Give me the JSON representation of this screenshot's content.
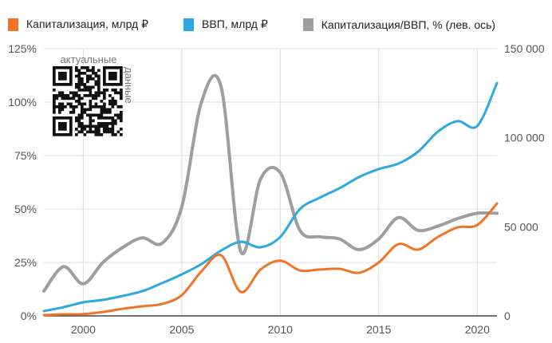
{
  "chart_data": {
    "type": "line",
    "title": "",
    "x": [
      1998,
      1999,
      2000,
      2001,
      2002,
      2003,
      2004,
      2005,
      2006,
      2007,
      2008,
      2009,
      2010,
      2011,
      2012,
      2013,
      2014,
      2015,
      2016,
      2017,
      2018,
      2019,
      2020,
      2021
    ],
    "xlim": [
      1998,
      2021
    ],
    "x_ticks": [
      "2000",
      "2005",
      "2010",
      "2015",
      "2020"
    ],
    "x_tick_values": [
      2000,
      2005,
      2010,
      2015,
      2020
    ],
    "ylim_left": [
      0,
      125
    ],
    "y_left_ticks": [
      "0%",
      "25%",
      "50%",
      "75%",
      "100%",
      "125%"
    ],
    "y_left_tick_values": [
      0,
      25,
      50,
      75,
      100,
      125
    ],
    "ylim_right": [
      0,
      150000
    ],
    "y_right_ticks": [
      "0",
      "50 000",
      "100 000",
      "150 000"
    ],
    "y_right_tick_values": [
      0,
      50000,
      100000,
      150000
    ],
    "grid": true,
    "legend_position": "top",
    "series": [
      {
        "name": "Капитализация, млрд ₽",
        "axis": "right",
        "color": "#f07427",
        "values": [
          500,
          900,
          1000,
          2200,
          4000,
          5400,
          6700,
          11600,
          25000,
          34000,
          13400,
          26000,
          31000,
          25500,
          26000,
          26400,
          24200,
          30000,
          40300,
          37200,
          44300,
          49700,
          51000,
          63100
        ]
      },
      {
        "name": "ВВП, млрд ₽",
        "axis": "right",
        "color": "#2ea8e0",
        "values": [
          2700,
          4900,
          7600,
          9000,
          11200,
          13900,
          18400,
          23300,
          29100,
          36700,
          41600,
          38500,
          44300,
          60000,
          66300,
          71600,
          77900,
          82400,
          85500,
          92200,
          103400,
          109300,
          106600,
          130700
        ]
      },
      {
        "name": "Капитализация/ВВП, % (лев. ось)",
        "axis": "left",
        "color": "#9e9e9e",
        "values": [
          11.6,
          23,
          15,
          25,
          32,
          36.5,
          34,
          51,
          100,
          107,
          30,
          64,
          67,
          40,
          37,
          36,
          31,
          36,
          46,
          40,
          42,
          45.5,
          48,
          48
        ]
      }
    ]
  },
  "qr": {
    "label_top": "актуальные",
    "label_side": "данные"
  }
}
